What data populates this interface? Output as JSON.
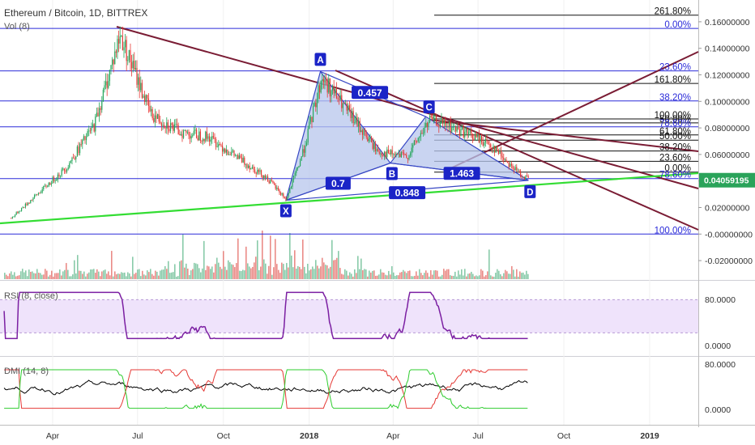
{
  "header": {
    "title": "Ethereum / Bitcoin, 1D, BITTREX",
    "vol_label": "Vol (8)",
    "rsi_label": "RSI (8, close)",
    "dmi_label": "DMI (14, 8)"
  },
  "colors": {
    "fib_blue": "#2b2bd9",
    "fib_black": "#111111",
    "trend_maroon": "#7a1c34",
    "support_green": "#33dd33",
    "harmonic_fill": "#b7c6ec",
    "harmonic_stroke": "#3747c4",
    "marker_bg": "#1b24c7",
    "price_tag": "#2aa35a",
    "rsi_band": "#efe3fb",
    "rsi_line": "#7b1fa2",
    "vol_up": "#4caf7d",
    "vol_down": "#e0504a",
    "dmi_black": "#000000",
    "dmi_red": "#e53935",
    "dmi_green": "#2ecc2e"
  },
  "chart_data": {
    "type": "line",
    "title": "Ethereum / Bitcoin, 1D, BITTREX",
    "x_ticks": [
      "Apr",
      "Jul",
      "Oct",
      "2018",
      "Apr",
      "Jul",
      "Oct",
      "2019"
    ],
    "price_axis": {
      "ticks": [
        "0.16000000",
        "0.14000000",
        "0.12000000",
        "0.10000000",
        "0.08000000",
        "0.06000000",
        "0.04000000",
        "0.02000000",
        "-0.00000000",
        "-0.02000000"
      ],
      "ylim": [
        -0.025,
        0.165
      ],
      "current_price": "0.04059195"
    },
    "price_series_approx": {
      "dates": [
        "2017-02-15",
        "2017-03-15",
        "2017-04-15",
        "2017-05-15",
        "2017-06-12",
        "2017-07-15",
        "2017-08-15",
        "2017-09-15",
        "2017-10-15",
        "2017-11-15",
        "2017-12-07",
        "2017-12-25",
        "2018-01-14",
        "2018-02-10",
        "2018-03-15",
        "2018-04-15",
        "2018-05-10",
        "2018-06-15",
        "2018-07-15",
        "2018-08-10",
        "2018-08-24"
      ],
      "values": [
        0.012,
        0.03,
        0.05,
        0.082,
        0.15,
        0.09,
        0.077,
        0.073,
        0.058,
        0.043,
        0.026,
        0.062,
        0.118,
        0.093,
        0.062,
        0.058,
        0.086,
        0.077,
        0.067,
        0.048,
        0.041
      ]
    },
    "harmonic_pattern": {
      "points": [
        {
          "label": "X",
          "date": "2017-12-07",
          "price": 0.0255
        },
        {
          "label": "A",
          "date": "2018-01-13",
          "price": 0.1225
        },
        {
          "label": "B",
          "date": "2018-03-29",
          "price": 0.0535
        },
        {
          "label": "C",
          "date": "2018-05-06",
          "price": 0.0885
        },
        {
          "label": "D",
          "date": "2018-08-24",
          "price": 0.0405
        }
      ],
      "ratios": [
        {
          "value": "0.457"
        },
        {
          "value": "1.463"
        },
        {
          "value": "0.7"
        },
        {
          "value": "0.848"
        }
      ]
    },
    "fib_levels": [
      {
        "label": "261.80%",
        "price": 0.165,
        "color": "black"
      },
      {
        "label": "0.00%",
        "price": 0.155,
        "color": "blue"
      },
      {
        "label": "23.60%",
        "price": 0.123,
        "color": "blue"
      },
      {
        "label": "161.80%",
        "price": 0.1135,
        "color": "black"
      },
      {
        "label": "38.20%",
        "price": 0.1003,
        "color": "blue"
      },
      {
        "label": "100.00%",
        "price": 0.0868,
        "color": "black"
      },
      {
        "label": "50.00%",
        "price": 0.0838,
        "color": "black"
      },
      {
        "label": "78.60%",
        "price": 0.0808,
        "color": "blue"
      },
      {
        "label": "61.80%",
        "price": 0.0747,
        "color": "black"
      },
      {
        "label": "50.00%",
        "price": 0.0708,
        "color": "black"
      },
      {
        "label": "38.20%",
        "price": 0.0626,
        "color": "black"
      },
      {
        "label": "23.60%",
        "price": 0.0548,
        "color": "black"
      },
      {
        "label": "0.00%",
        "price": 0.0467,
        "color": "black"
      },
      {
        "label": "78.60%",
        "price": 0.0418,
        "color": "blue"
      },
      {
        "label": "100.00%",
        "price": 0.0,
        "color": "blue"
      }
    ],
    "rsi": {
      "ticks": [
        "80.0000",
        "0.0000"
      ],
      "ylim": [
        0,
        100
      ],
      "band": [
        30,
        70
      ]
    },
    "dmi": {
      "ticks": [
        "80.0000",
        "0.0000"
      ],
      "series": [
        {
          "color": "black"
        },
        {
          "color": "red"
        },
        {
          "color": "green"
        }
      ]
    }
  }
}
